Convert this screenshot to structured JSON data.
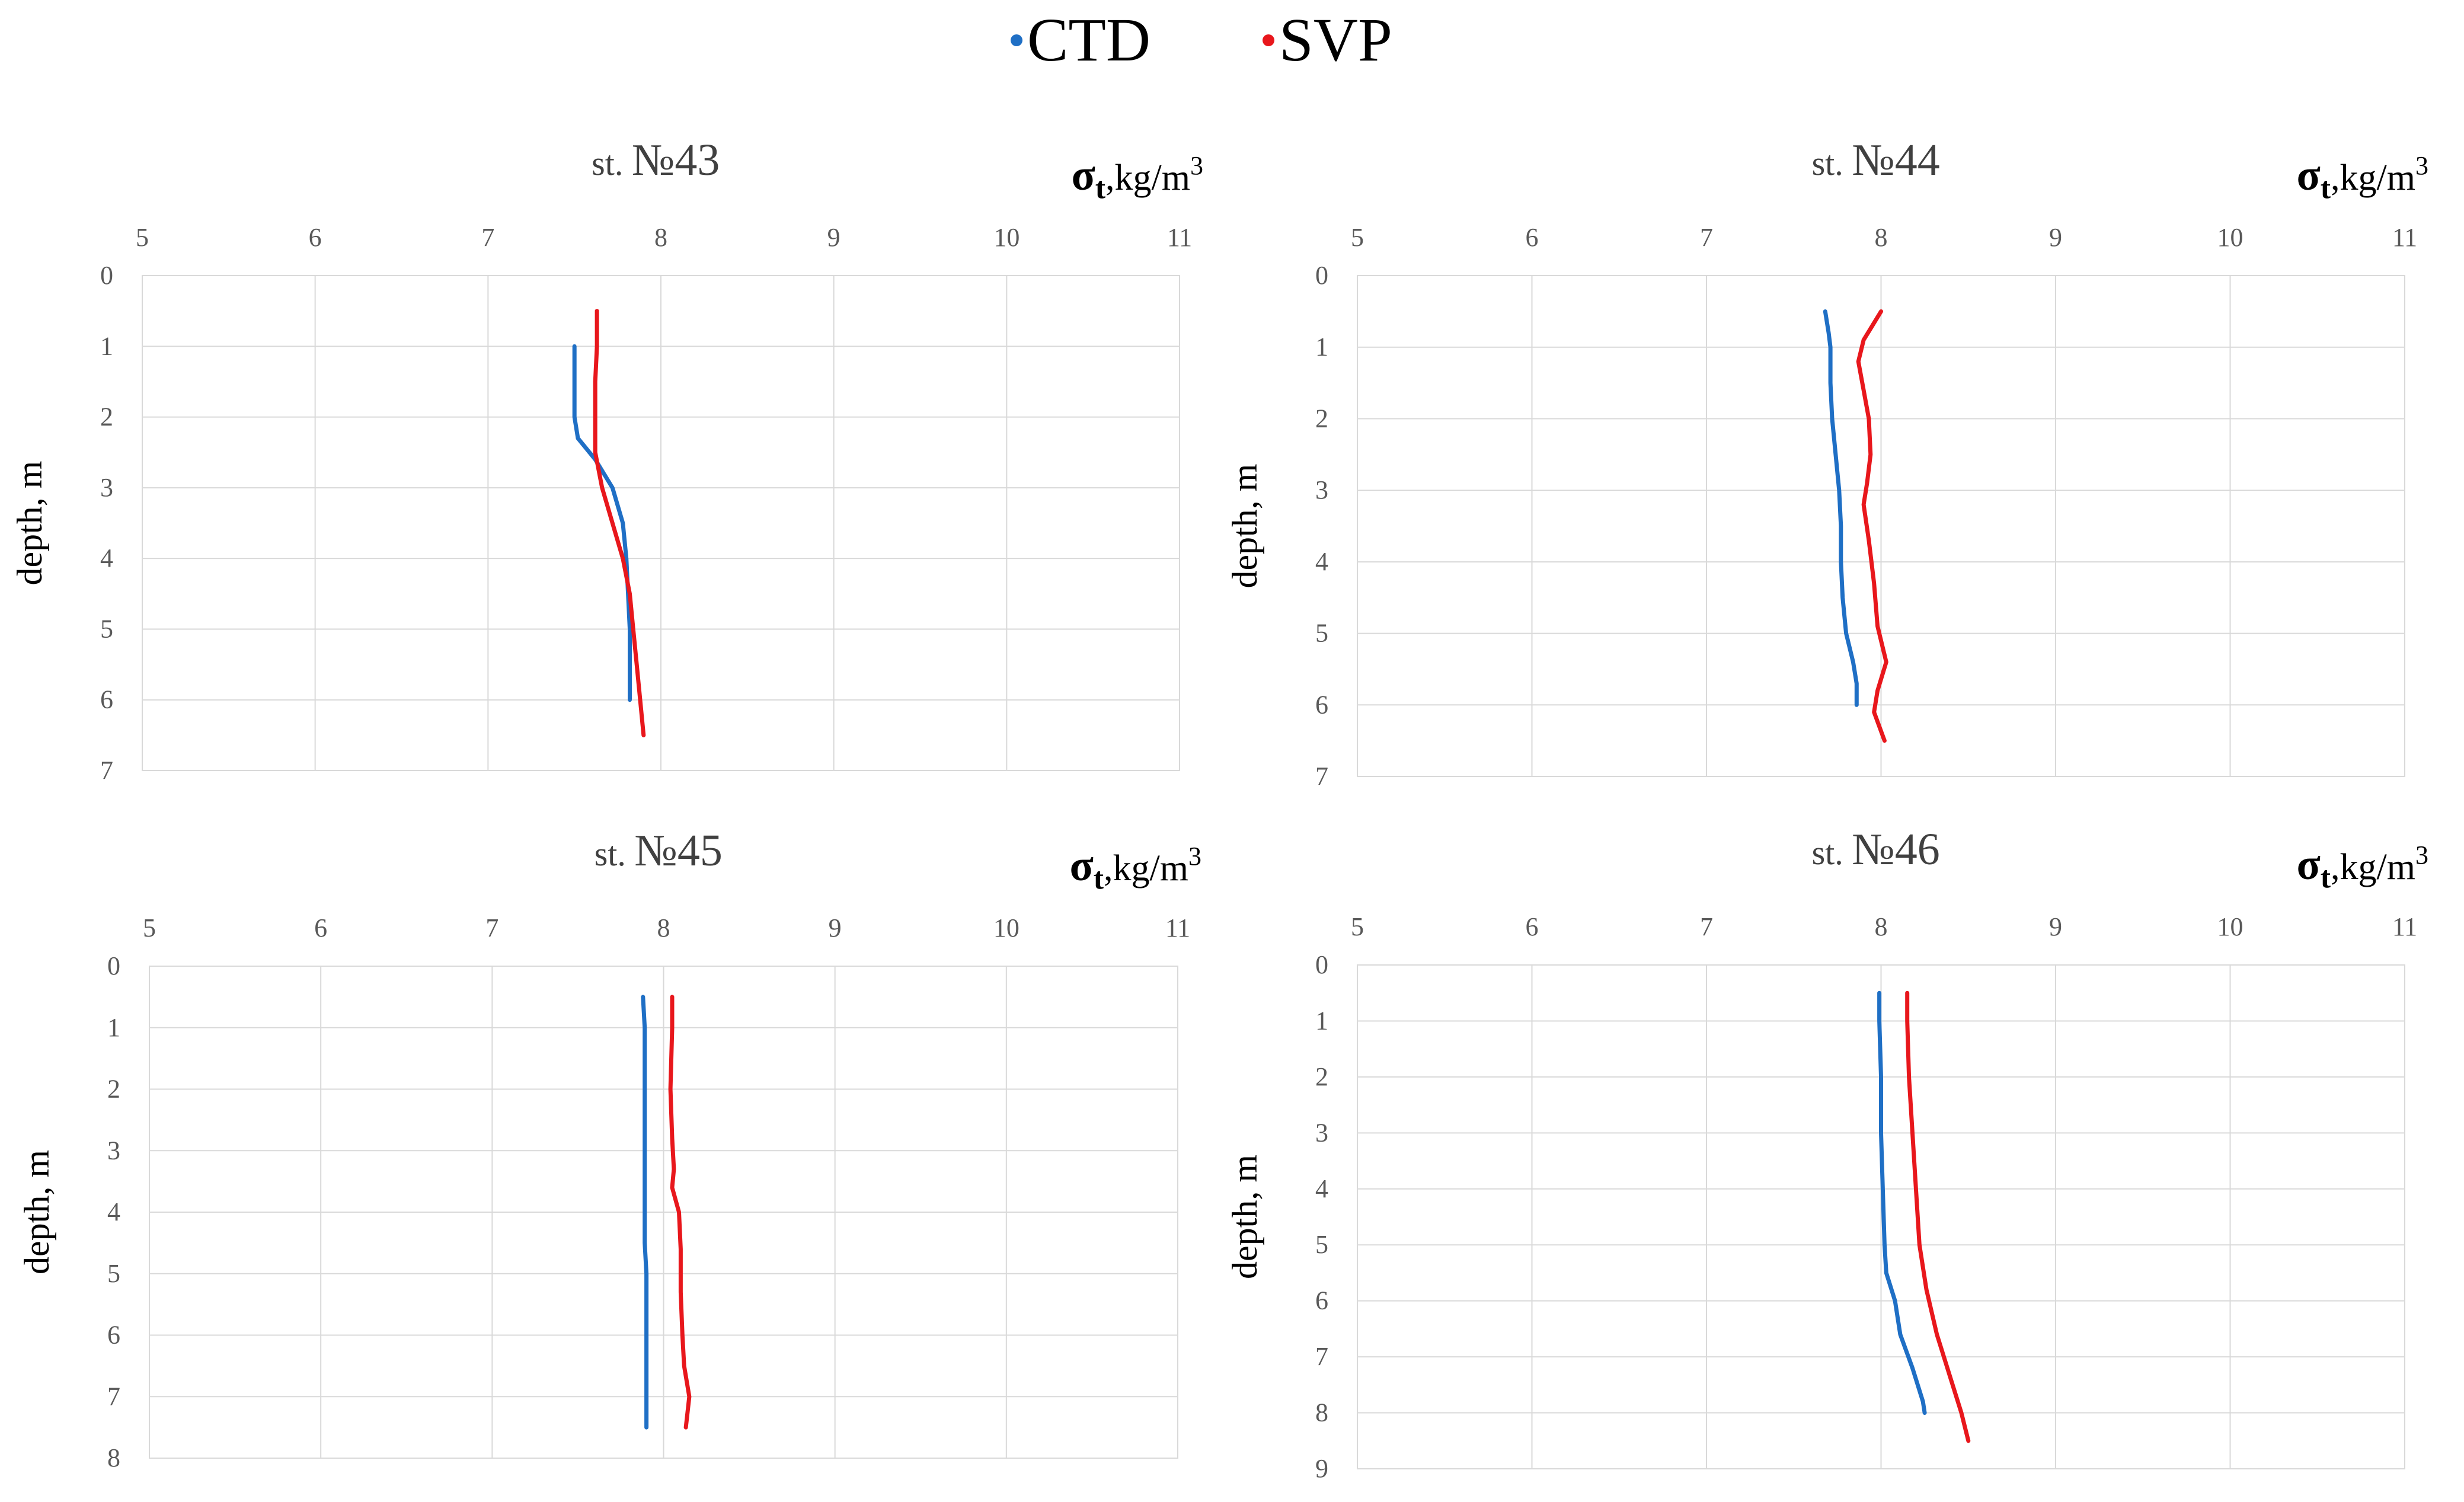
{
  "legend": {
    "items": [
      {
        "name": "CTD",
        "color": "#1f6fc5"
      },
      {
        "name": "SVP",
        "color": "#e8171c"
      }
    ]
  },
  "chart_data": [
    {
      "type": "line",
      "title_prefix": "st.",
      "title_num": "№43",
      "xlabel_sym": "σ",
      "xlabel_sub": "t",
      "xlabel_unit": ",kg/m",
      "xlabel_sup": "3",
      "ylabel": "depth, m",
      "xlim": [
        5,
        11
      ],
      "ylim": [
        0,
        7
      ],
      "xticks": [
        5,
        6,
        7,
        8,
        9,
        10,
        11
      ],
      "yticks": [
        0,
        1,
        2,
        3,
        4,
        5,
        6,
        7
      ],
      "series": [
        {
          "name": "CTD",
          "color": "#1f6fc5",
          "x": [
            7.5,
            7.5,
            7.5,
            7.52,
            7.62,
            7.72,
            7.78,
            7.8,
            7.81,
            7.82,
            7.82
          ],
          "y": [
            1.0,
            1.5,
            2.0,
            2.3,
            2.6,
            3.0,
            3.5,
            4.0,
            4.5,
            5.0,
            6.0
          ]
        },
        {
          "name": "SVP",
          "color": "#e8171c",
          "x": [
            7.63,
            7.63,
            7.62,
            7.62,
            7.62,
            7.66,
            7.72,
            7.78,
            7.82,
            7.84,
            7.86,
            7.88,
            7.9
          ],
          "y": [
            0.5,
            1.0,
            1.5,
            2.0,
            2.5,
            3.0,
            3.5,
            4.0,
            4.5,
            5.0,
            5.5,
            6.0,
            6.5
          ]
        }
      ]
    },
    {
      "type": "line",
      "title_prefix": "st.",
      "title_num": "№44",
      "xlabel_sym": "σ",
      "xlabel_sub": "t",
      "xlabel_unit": ",kg/m",
      "xlabel_sup": "3",
      "ylabel": "depth, m",
      "xlim": [
        5,
        11
      ],
      "ylim": [
        0,
        7
      ],
      "xticks": [
        5,
        6,
        7,
        8,
        9,
        10,
        11
      ],
      "yticks": [
        0,
        1,
        2,
        3,
        4,
        5,
        6,
        7
      ],
      "series": [
        {
          "name": "CTD",
          "color": "#1f6fc5",
          "x": [
            7.68,
            7.7,
            7.71,
            7.71,
            7.72,
            7.74,
            7.76,
            7.77,
            7.77,
            7.78,
            7.8,
            7.84,
            7.86,
            7.86
          ],
          "y": [
            0.5,
            0.8,
            1.0,
            1.5,
            2.0,
            2.5,
            3.0,
            3.5,
            4.0,
            4.5,
            5.0,
            5.4,
            5.7,
            6.0
          ]
        },
        {
          "name": "SVP",
          "color": "#e8171c",
          "x": [
            8.0,
            7.95,
            7.9,
            7.87,
            7.9,
            7.93,
            7.94,
            7.92,
            7.9,
            7.93,
            7.96,
            7.98,
            8.03,
            7.98,
            7.96,
            8.02
          ],
          "y": [
            0.5,
            0.7,
            0.9,
            1.2,
            1.6,
            2.0,
            2.5,
            2.9,
            3.2,
            3.7,
            4.3,
            4.9,
            5.4,
            5.8,
            6.1,
            6.5
          ]
        }
      ]
    },
    {
      "type": "line",
      "title_prefix": "st.",
      "title_num": "№45",
      "xlabel_sym": "σ",
      "xlabel_sub": "t",
      "xlabel_unit": ",kg/m",
      "xlabel_sup": "3",
      "ylabel": "depth, m",
      "xlim": [
        5,
        11
      ],
      "ylim": [
        0,
        8
      ],
      "xticks": [
        5,
        6,
        7,
        8,
        9,
        10,
        11
      ],
      "yticks": [
        0,
        1,
        2,
        3,
        4,
        5,
        6,
        7,
        8
      ],
      "series": [
        {
          "name": "CTD",
          "color": "#1f6fc5",
          "x": [
            7.88,
            7.89,
            7.89,
            7.89,
            7.89,
            7.89,
            7.9,
            7.9,
            7.9,
            7.9
          ],
          "y": [
            0.5,
            1.0,
            2.0,
            3.0,
            4.0,
            4.5,
            5.0,
            6.0,
            7.0,
            7.5
          ]
        },
        {
          "name": "SVP",
          "color": "#e8171c",
          "x": [
            8.05,
            8.05,
            8.04,
            8.05,
            8.06,
            8.05,
            8.09,
            8.1,
            8.1,
            8.11,
            8.12,
            8.15,
            8.13
          ],
          "y": [
            0.5,
            1.0,
            2.0,
            2.8,
            3.3,
            3.6,
            4.0,
            4.6,
            5.3,
            6.0,
            6.5,
            7.0,
            7.5
          ]
        }
      ]
    },
    {
      "type": "line",
      "title_prefix": "st.",
      "title_num": "№46",
      "xlabel_sym": "σ",
      "xlabel_sub": "t",
      "xlabel_unit": ",kg/m",
      "xlabel_sup": "3",
      "ylabel": "depth, m",
      "xlim": [
        5,
        11
      ],
      "ylim": [
        0,
        9
      ],
      "xticks": [
        5,
        6,
        7,
        8,
        9,
        10,
        11
      ],
      "yticks": [
        0,
        1,
        2,
        3,
        4,
        5,
        6,
        7,
        8,
        9
      ],
      "series": [
        {
          "name": "CTD",
          "color": "#1f6fc5",
          "x": [
            7.99,
            7.99,
            8.0,
            8.0,
            8.01,
            8.02,
            8.03,
            8.08,
            8.11,
            8.18,
            8.24,
            8.25
          ],
          "y": [
            0.5,
            1.0,
            2.0,
            3.0,
            4.0,
            5.0,
            5.5,
            6.0,
            6.6,
            7.2,
            7.8,
            8.0
          ]
        },
        {
          "name": "SVP",
          "color": "#e8171c",
          "x": [
            8.15,
            8.15,
            8.16,
            8.18,
            8.2,
            8.22,
            8.26,
            8.32,
            8.4,
            8.46,
            8.5
          ],
          "y": [
            0.5,
            1.0,
            2.0,
            3.0,
            4.0,
            5.0,
            5.8,
            6.6,
            7.4,
            8.0,
            8.5
          ]
        }
      ]
    }
  ]
}
